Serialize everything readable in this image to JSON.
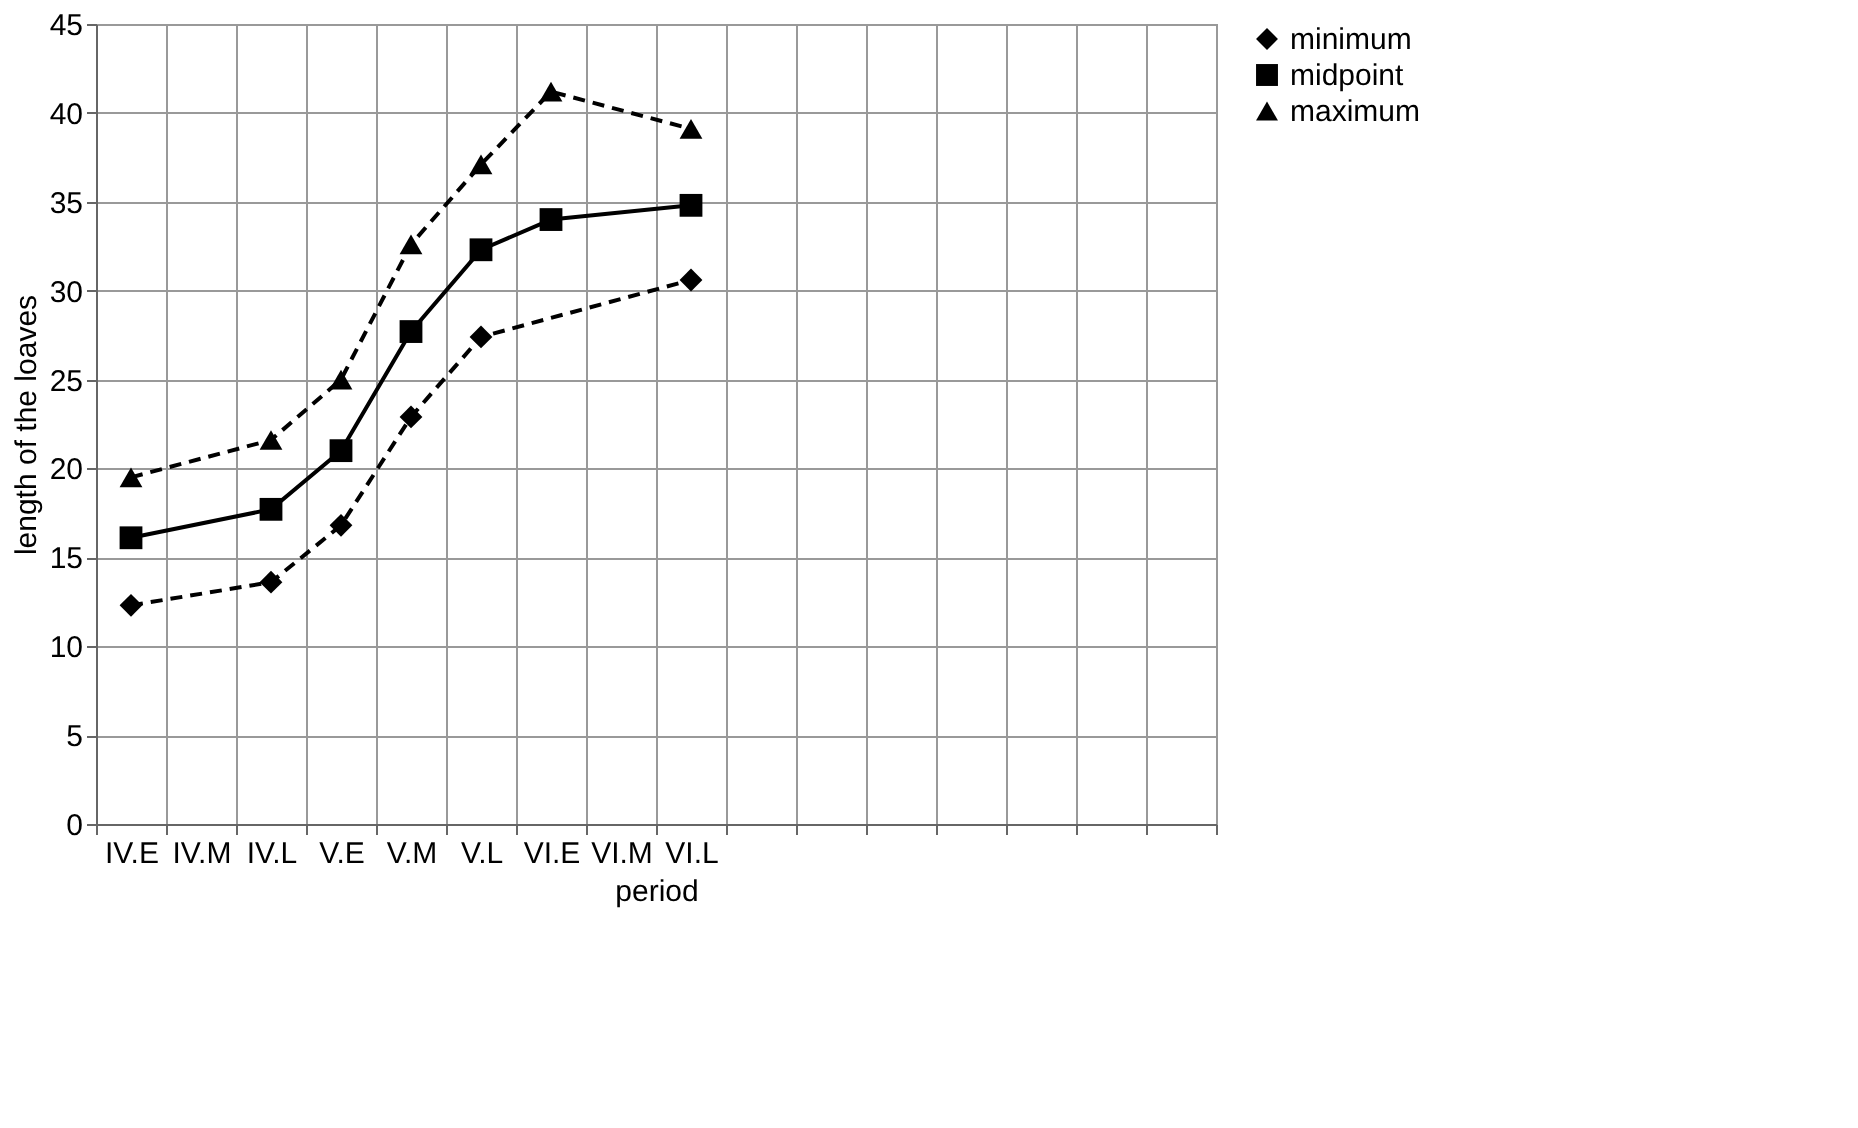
{
  "chart_data": {
    "type": "line",
    "xlabel": "period",
    "ylabel": "length of the loaves",
    "categories": [
      "IV.E",
      "IV.M",
      "IV.L",
      "V.E",
      "V.M",
      "V.L",
      "VI.E",
      "VI.M",
      "VI.L",
      null,
      null,
      null,
      null,
      null,
      null,
      null
    ],
    "ylim": [
      0,
      45
    ],
    "yticks": [
      0,
      5,
      10,
      15,
      20,
      25,
      30,
      35,
      40,
      45
    ],
    "grid": true,
    "legend": "right",
    "series": [
      {
        "name": "minimum",
        "color": "#000000",
        "marker": "diamond",
        "line_style": "dashed",
        "values": [
          12.3,
          null,
          13.6,
          16.8,
          22.9,
          27.4,
          null,
          null,
          30.6,
          null,
          null,
          null,
          null,
          null,
          null,
          null
        ]
      },
      {
        "name": "midpoint",
        "color": "#000000",
        "marker": "square",
        "line_style": "solid",
        "values": [
          16.1,
          null,
          17.7,
          21.0,
          27.7,
          32.3,
          34.0,
          null,
          34.8,
          null,
          null,
          null,
          null,
          null,
          null,
          null
        ]
      },
      {
        "name": "maximum",
        "color": "#000000",
        "marker": "triangle",
        "line_style": "dashed",
        "values": [
          19.5,
          null,
          21.6,
          25.0,
          32.6,
          37.1,
          41.2,
          null,
          39.1,
          null,
          null,
          null,
          null,
          null,
          null,
          null
        ]
      }
    ]
  }
}
